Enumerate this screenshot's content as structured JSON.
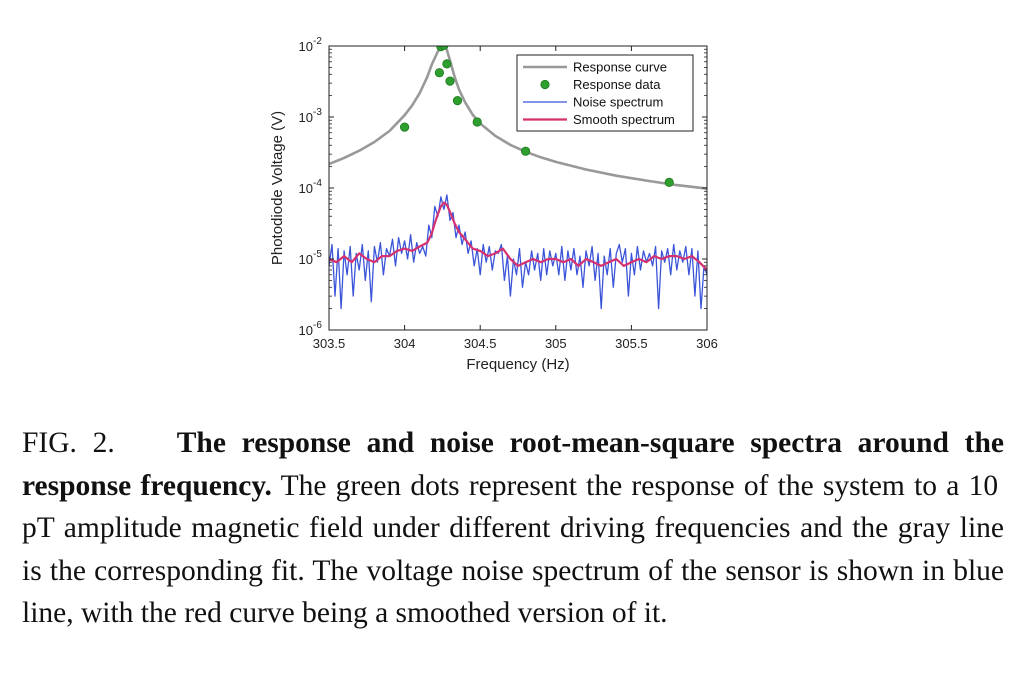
{
  "chart_data": {
    "type": "line",
    "title": "",
    "xlabel": "Frequency (Hz)",
    "ylabel": "Photodiode Voltage (V)",
    "xlim": [
      303.5,
      306
    ],
    "ylim": [
      1e-06,
      0.01
    ],
    "yscale": "log",
    "x_ticks": [
      303.5,
      304,
      304.5,
      305,
      305.5,
      306
    ],
    "x_tick_labels": [
      "303.5",
      "304",
      "304.5",
      "305",
      "305.5",
      "306"
    ],
    "y_ticks": [
      1e-06,
      1e-05,
      0.0001,
      0.001,
      0.01
    ],
    "y_tick_labels": [
      {
        "base": "10",
        "exp": "-6"
      },
      {
        "base": "10",
        "exp": "-5"
      },
      {
        "base": "10",
        "exp": "-4"
      },
      {
        "base": "10",
        "exp": "-3"
      },
      {
        "base": "10",
        "exp": "-2"
      }
    ],
    "grid": false,
    "legend_position": "top-right",
    "series": [
      {
        "name": "Response curve",
        "kind": "line",
        "color": "#999999",
        "x": [
          303.5,
          303.6,
          303.7,
          303.8,
          303.9,
          304.0,
          304.05,
          304.1,
          304.15,
          304.18,
          304.2,
          304.22,
          304.24,
          304.25,
          304.26,
          304.27,
          304.28,
          304.3,
          304.33,
          304.36,
          304.4,
          304.45,
          304.5,
          304.6,
          304.7,
          304.8,
          304.9,
          305.0,
          305.2,
          305.4,
          305.6,
          305.8,
          306.0
        ],
        "y": [
          0.000218,
          0.000265,
          0.000335,
          0.000445,
          0.000635,
          0.00106,
          0.00146,
          0.00217,
          0.00368,
          0.00548,
          0.00678,
          0.00841,
          0.00958,
          0.00992,
          0.00993,
          0.00962,
          0.00878,
          0.00625,
          0.00373,
          0.00244,
          0.00161,
          0.00108,
          0.00081,
          0.000541,
          0.000405,
          0.000325,
          0.000271,
          0.000233,
          0.000182,
          0.000149,
          0.000127,
          0.00011,
          9.8e-05
        ]
      },
      {
        "name": "Response data",
        "kind": "scatter",
        "color": "#2e9e2e",
        "x": [
          304.0,
          304.23,
          304.24,
          304.26,
          304.28,
          304.3,
          304.35,
          304.48,
          304.8,
          305.75
        ],
        "y": [
          0.00072,
          0.0042,
          0.0098,
          0.0102,
          0.0056,
          0.0032,
          0.0017,
          0.00085,
          0.00033,
          0.00012
        ]
      },
      {
        "name": "Noise spectrum",
        "kind": "line",
        "color": "#3b55d9",
        "x": [
          303.5,
          303.52,
          303.54,
          303.56,
          303.58,
          303.6,
          303.62,
          303.64,
          303.66,
          303.68,
          303.7,
          303.72,
          303.74,
          303.76,
          303.78,
          303.8,
          303.82,
          303.84,
          303.86,
          303.88,
          303.9,
          303.92,
          303.94,
          303.96,
          303.98,
          304.0,
          304.02,
          304.04,
          304.06,
          304.08,
          304.1,
          304.12,
          304.14,
          304.16,
          304.18,
          304.2,
          304.22,
          304.24,
          304.26,
          304.28,
          304.3,
          304.32,
          304.34,
          304.36,
          304.38,
          304.4,
          304.42,
          304.44,
          304.46,
          304.48,
          304.5,
          304.52,
          304.54,
          304.56,
          304.58,
          304.6,
          304.62,
          304.64,
          304.66,
          304.68,
          304.7,
          304.72,
          304.74,
          304.76,
          304.78,
          304.8,
          304.82,
          304.84,
          304.86,
          304.88,
          304.9,
          304.92,
          304.94,
          304.96,
          304.98,
          305.0,
          305.02,
          305.04,
          305.06,
          305.08,
          305.1,
          305.12,
          305.14,
          305.16,
          305.18,
          305.2,
          305.22,
          305.24,
          305.26,
          305.28,
          305.3,
          305.32,
          305.34,
          305.36,
          305.38,
          305.4,
          305.42,
          305.44,
          305.46,
          305.48,
          305.5,
          305.52,
          305.54,
          305.56,
          305.58,
          305.6,
          305.62,
          305.64,
          305.66,
          305.68,
          305.7,
          305.72,
          305.74,
          305.76,
          305.78,
          305.8,
          305.82,
          305.84,
          305.86,
          305.88,
          305.9,
          305.92,
          305.94,
          305.96,
          305.98,
          306.0
        ],
        "y": [
          8e-06,
          1.6e-05,
          3e-06,
          1.4e-05,
          2e-06,
          1.3e-05,
          6e-06,
          1.5e-05,
          3e-06,
          1.2e-05,
          7e-06,
          1.6e-05,
          5e-06,
          1.3e-05,
          2.5e-06,
          1.5e-05,
          9e-06,
          1.7e-05,
          6e-06,
          1.4e-05,
          1.1e-05,
          1.9e-05,
          8e-06,
          2e-05,
          1.2e-05,
          1.8e-05,
          1e-05,
          2.2e-05,
          9e-06,
          1.7e-05,
          1.2e-05,
          1.5e-05,
          1.1e-05,
          3e-05,
          2e-05,
          5.5e-05,
          4e-05,
          7.5e-05,
          5e-05,
          8e-05,
          3.5e-05,
          4.5e-05,
          2e-05,
          3e-05,
          1.6e-05,
          2.4e-05,
          1.2e-05,
          1.8e-05,
          8e-06,
          1.4e-05,
          6e-06,
          1.6e-05,
          9e-06,
          1.5e-05,
          7e-06,
          1.3e-05,
          1.2e-05,
          1.6e-05,
          5e-06,
          1.1e-05,
          3e-06,
          1e-05,
          6e-06,
          1.4e-05,
          4e-06,
          9e-06,
          6e-06,
          1.3e-05,
          7e-06,
          1.2e-05,
          5e-06,
          1.4e-05,
          6e-06,
          1.3e-05,
          8e-06,
          1.2e-05,
          6e-06,
          1.5e-05,
          5e-06,
          1.3e-05,
          7e-06,
          1.4e-05,
          6e-06,
          1.1e-05,
          4e-06,
          1.3e-05,
          8e-06,
          1.5e-05,
          5e-06,
          1.2e-05,
          2e-06,
          1.1e-05,
          6e-06,
          1.4e-05,
          4e-06,
          1.2e-05,
          1.6e-05,
          9e-06,
          1.4e-05,
          3e-06,
          1.2e-05,
          6e-06,
          1.5e-05,
          7e-06,
          1.3e-05,
          9e-06,
          1.2e-05,
          8e-06,
          1.5e-05,
          2e-06,
          1.3e-05,
          9e-06,
          1.4e-05,
          6e-06,
          1.6e-05,
          7e-06,
          1.3e-05,
          9e-06,
          1.5e-05,
          6e-06,
          1.4e-05,
          3e-06,
          1.3e-05,
          2e-06,
          8e-06,
          6e-06
        ]
      },
      {
        "name": "Smooth spectrum",
        "kind": "line",
        "color": "#d6306e",
        "x": [
          303.5,
          303.55,
          303.6,
          303.65,
          303.7,
          303.75,
          303.8,
          303.85,
          303.9,
          303.95,
          304.0,
          304.05,
          304.1,
          304.15,
          304.18,
          304.2,
          304.22,
          304.24,
          304.26,
          304.28,
          304.3,
          304.33,
          304.36,
          304.4,
          304.45,
          304.5,
          304.55,
          304.6,
          304.65,
          304.7,
          304.75,
          304.8,
          304.85,
          304.9,
          304.95,
          305.0,
          305.05,
          305.1,
          305.15,
          305.2,
          305.25,
          305.3,
          305.35,
          305.4,
          305.45,
          305.5,
          305.55,
          305.6,
          305.65,
          305.7,
          305.75,
          305.8,
          305.85,
          305.9,
          305.95,
          306.0
        ],
        "y": [
          1e-05,
          9e-06,
          1.1e-05,
          9e-06,
          1.2e-05,
          1e-05,
          9e-06,
          1.1e-05,
          1.1e-05,
          1.3e-05,
          1.4e-05,
          1.3e-05,
          1.5e-05,
          1.7e-05,
          2.3e-05,
          3.2e-05,
          4.3e-05,
          5.5e-05,
          6.2e-05,
          5.8e-05,
          4.6e-05,
          3.2e-05,
          2.4e-05,
          1.9e-05,
          1.4e-05,
          1.3e-05,
          1.1e-05,
          1.2e-05,
          1.4e-05,
          1e-05,
          8e-06,
          9e-06,
          1e-05,
          9e-06,
          1e-05,
          1e-05,
          9e-06,
          1e-05,
          8e-06,
          1e-05,
          9e-06,
          8e-06,
          9e-06,
          1e-05,
          8e-06,
          9e-06,
          1e-05,
          9e-06,
          1.1e-05,
          1e-05,
          1.1e-05,
          1.1e-05,
          1e-05,
          1.1e-05,
          9e-06,
          7e-06
        ]
      }
    ]
  },
  "caption": {
    "label": "FIG. 2.",
    "bold": "The response and noise root-mean-square spectra around the response frequency.",
    "text": " The green dots represent the response of the system to a 10 pT amplitude magnetic field under different driving frequencies and the gray line is the corresponding fit. The voltage noise spectrum of the sensor is shown in blue line, with the red curve being a smoothed version of it."
  }
}
